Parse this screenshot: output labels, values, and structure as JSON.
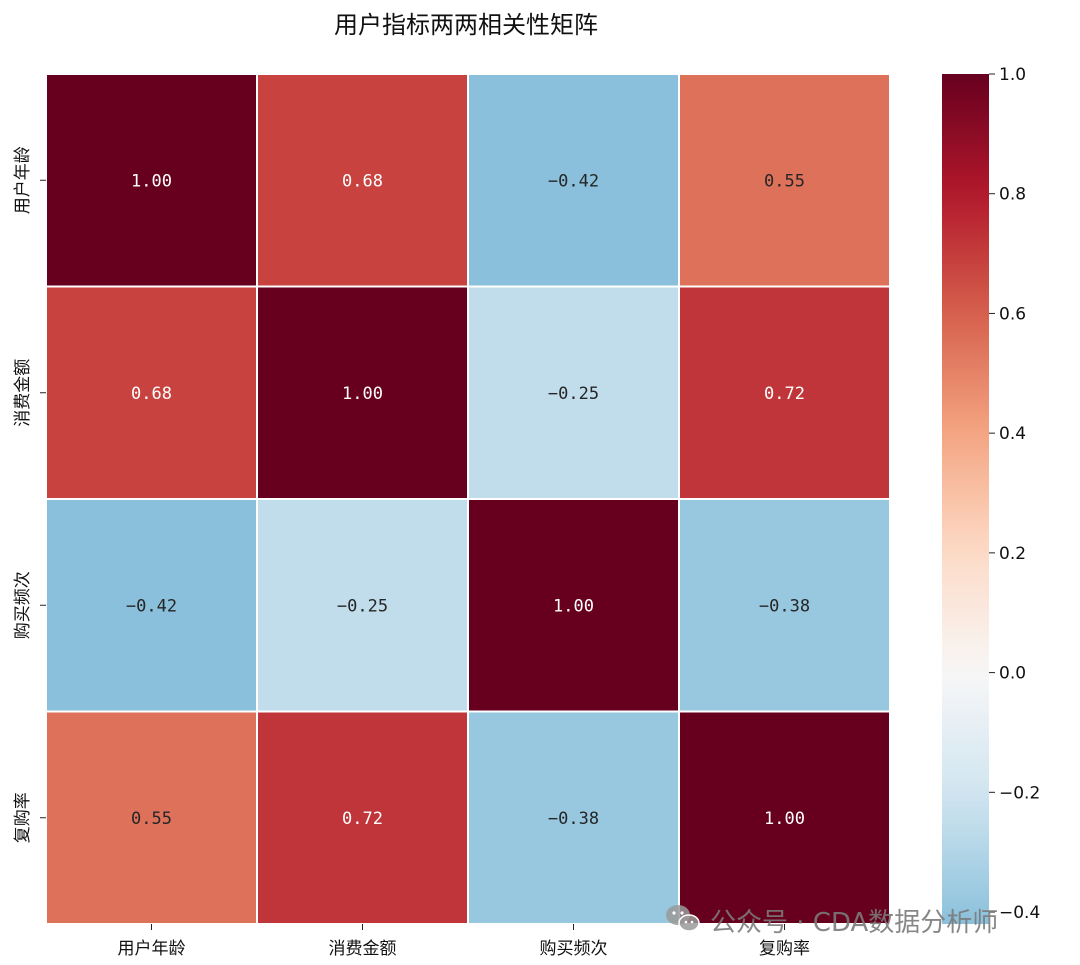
{
  "chart_data": {
    "type": "heatmap",
    "title": "用户指标两两相关性矩阵",
    "row_labels": [
      "用户年龄",
      "消费金额",
      "购买频次",
      "复购率"
    ],
    "col_labels": [
      "用户年龄",
      "消费金额",
      "购买频次",
      "复购率"
    ],
    "values": [
      [
        1.0,
        0.68,
        -0.42,
        0.55
      ],
      [
        0.68,
        1.0,
        -0.25,
        0.72
      ],
      [
        -0.42,
        -0.25,
        1.0,
        -0.38
      ],
      [
        0.55,
        0.72,
        -0.38,
        1.0
      ]
    ],
    "cell_text": [
      [
        "1.00",
        "0.68",
        "−0.42",
        "0.55"
      ],
      [
        "0.68",
        "1.00",
        "−0.25",
        "0.72"
      ],
      [
        "−0.42",
        "−0.25",
        "1.00",
        "−0.38"
      ],
      [
        "0.55",
        "0.72",
        "−0.38",
        "1.00"
      ]
    ],
    "colormap": "RdBu_r",
    "center": 0,
    "colorbar": {
      "range": [
        -0.42,
        1.0
      ],
      "ticks": [
        1.0,
        0.8,
        0.6,
        0.4,
        0.2,
        0.0,
        -0.2,
        -0.4
      ],
      "tick_labels": [
        "1.0",
        "0.8",
        "0.6",
        "0.4",
        "0.2",
        "0.0",
        "−0.2",
        "−0.4"
      ]
    }
  },
  "watermark": {
    "text": "公众号 · CDA数据分析师",
    "icon": "wechat-icon"
  }
}
